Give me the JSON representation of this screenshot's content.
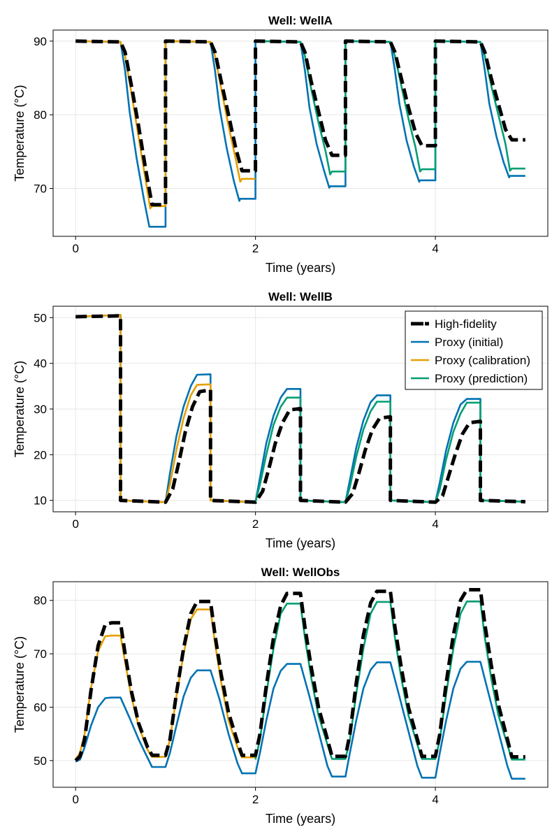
{
  "colors": {
    "high_fidelity": "#000000",
    "proxy_initial": "#0072B2",
    "proxy_calibration": "#E69F00",
    "proxy_prediction": "#009E73"
  },
  "legend": {
    "placement": "top-right of second panel",
    "entries": [
      "High-fidelity",
      "Proxy (initial)",
      "Proxy (calibration)",
      "Proxy (prediction)"
    ]
  },
  "chart_data": [
    {
      "type": "line",
      "title": "Well: WellA",
      "xlabel": "Time (years)",
      "ylabel": "Temperature (°C)",
      "xlim": [
        -0.25,
        5.25
      ],
      "ylim": [
        63.5,
        91.5
      ],
      "xticks": [
        0,
        2,
        4
      ],
      "yticks": [
        70,
        80,
        90
      ],
      "grid": true,
      "series": [
        {
          "name": "High-fidelity",
          "style": "dashed",
          "x": [
            0,
            0.5,
            0.55,
            0.62,
            0.7,
            0.78,
            0.85,
            1.0,
            1.0,
            1.5,
            1.55,
            1.62,
            1.7,
            1.78,
            1.85,
            2.0,
            2.0,
            2.5,
            2.55,
            2.62,
            2.7,
            2.78,
            2.85,
            3.0,
            3.0,
            3.5,
            3.55,
            3.62,
            3.7,
            3.78,
            3.85,
            4.0,
            4.0,
            4.5,
            4.55,
            4.62,
            4.7,
            4.78,
            4.85,
            5.0
          ],
          "y": [
            90,
            89.9,
            88.5,
            84.0,
            78.5,
            72.5,
            67.8,
            67.8,
            90,
            89.9,
            88.5,
            84.5,
            80.0,
            75.5,
            72.4,
            72.4,
            90,
            89.9,
            88.5,
            84.5,
            80.5,
            76.5,
            74.5,
            74.5,
            90,
            89.9,
            88.5,
            85.0,
            81.0,
            77.5,
            75.8,
            75.8,
            90,
            89.9,
            88.5,
            85.0,
            81.5,
            78.0,
            76.6,
            76.6
          ]
        },
        {
          "name": "Proxy (initial)",
          "style": "solid",
          "x": [
            0,
            0.5,
            0.55,
            0.6,
            0.68,
            0.76,
            0.82,
            0.83,
            1.0,
            1.0,
            1.5,
            1.55,
            1.6,
            1.68,
            1.76,
            1.82,
            1.83,
            2.0,
            2.0,
            2.5,
            2.55,
            2.6,
            2.68,
            2.76,
            2.82,
            2.83,
            3.0,
            3.0,
            3.5,
            3.55,
            3.6,
            3.68,
            3.76,
            3.82,
            3.83,
            4.0,
            4.0,
            4.5,
            4.55,
            4.6,
            4.68,
            4.76,
            4.82,
            4.83,
            5.0
          ],
          "y": [
            90,
            89.9,
            86.0,
            80.5,
            74.0,
            68.5,
            64.8,
            64.8,
            64.8,
            90,
            89.9,
            86.0,
            81.0,
            75.5,
            71.0,
            68.3,
            68.6,
            68.6,
            90,
            89.9,
            86.0,
            81.0,
            76.0,
            72.5,
            70.1,
            70.3,
            70.3,
            90,
            89.9,
            86.0,
            81.5,
            76.5,
            73.0,
            70.9,
            71.1,
            71.1,
            90,
            89.9,
            86.0,
            81.5,
            77.0,
            73.5,
            71.5,
            71.7,
            71.7
          ]
        },
        {
          "name": "Proxy (calibration)",
          "style": "solid",
          "x": [
            0,
            0.5,
            0.55,
            0.62,
            0.7,
            0.78,
            0.83,
            0.85,
            1.0,
            1.0,
            1.5,
            1.55,
            1.62,
            1.7,
            1.78,
            1.83,
            1.85,
            2.0
          ],
          "y": [
            90,
            89.9,
            88.0,
            83.0,
            77.0,
            71.0,
            67.3,
            67.6,
            67.6,
            90,
            89.9,
            88.0,
            83.5,
            78.5,
            74.0,
            70.9,
            71.3,
            71.3
          ]
        },
        {
          "name": "Proxy (prediction)",
          "style": "solid",
          "x": [
            2.0,
            2.5,
            2.55,
            2.62,
            2.7,
            2.78,
            2.83,
            2.85,
            3.0,
            3.0,
            3.5,
            3.55,
            3.62,
            3.7,
            3.78,
            3.83,
            3.85,
            4.0,
            4.0,
            4.5,
            4.55,
            4.62,
            4.7,
            4.78,
            4.83,
            4.85,
            5.0
          ],
          "y": [
            90,
            89.9,
            88.0,
            83.5,
            79.0,
            75.0,
            71.9,
            72.3,
            72.3,
            90,
            89.9,
            88.0,
            84.0,
            79.5,
            75.5,
            72.3,
            72.6,
            72.6,
            90,
            89.9,
            88.0,
            84.0,
            80.0,
            76.0,
            72.4,
            72.7,
            72.7
          ]
        }
      ]
    },
    {
      "type": "line",
      "title": "Well: WellB",
      "xlabel": "Time (years)",
      "ylabel": "Temperature (°C)",
      "xlim": [
        -0.25,
        5.25
      ],
      "ylim": [
        7.5,
        52.5
      ],
      "xticks": [
        0,
        2,
        4
      ],
      "yticks": [
        10,
        20,
        30,
        40,
        50
      ],
      "grid": true,
      "series": [
        {
          "name": "High-fidelity",
          "style": "dashed",
          "x": [
            0,
            0.5,
            0.5,
            1.0,
            1.08,
            1.15,
            1.22,
            1.3,
            1.38,
            1.5,
            1.5,
            2.0,
            2.08,
            2.15,
            2.22,
            2.3,
            2.38,
            2.5,
            2.5,
            3.0,
            3.08,
            3.15,
            3.22,
            3.3,
            3.38,
            3.5,
            3.5,
            4.0,
            4.08,
            4.15,
            4.22,
            4.3,
            4.38,
            4.5,
            4.5,
            5.0
          ],
          "y": [
            50.2,
            50.4,
            10.0,
            9.6,
            12.5,
            18.5,
            25.0,
            30.5,
            33.8,
            34.2,
            10.0,
            9.6,
            12.0,
            17.0,
            22.5,
            27.0,
            29.8,
            30.1,
            10.0,
            9.6,
            11.5,
            16.0,
            21.0,
            25.5,
            28.0,
            28.3,
            10.0,
            9.6,
            11.0,
            15.5,
            20.0,
            24.5,
            27.0,
            27.3,
            10.0,
            9.7
          ]
        },
        {
          "name": "Proxy (initial)",
          "style": "solid",
          "x": [
            0,
            0.5,
            0.5,
            1.0,
            1.05,
            1.12,
            1.2,
            1.28,
            1.35,
            1.5,
            1.5,
            2.0,
            2.05,
            2.12,
            2.2,
            2.28,
            2.35,
            2.5,
            2.5,
            3.0,
            3.05,
            3.12,
            3.2,
            3.28,
            3.35,
            3.5,
            3.5,
            4.0,
            4.05,
            4.12,
            4.2,
            4.28,
            4.35,
            4.5,
            4.5,
            5.0
          ],
          "y": [
            50.2,
            50.6,
            10.0,
            9.6,
            16.0,
            24.0,
            30.5,
            35.0,
            37.5,
            37.6,
            10.0,
            9.6,
            15.0,
            22.5,
            28.5,
            32.5,
            34.4,
            34.4,
            10.0,
            9.6,
            14.5,
            21.5,
            27.5,
            31.5,
            33.0,
            33.0,
            10.0,
            9.6,
            14.0,
            21.0,
            27.0,
            31.0,
            32.2,
            32.2,
            10.0,
            9.7
          ]
        },
        {
          "name": "Proxy (calibration)",
          "style": "solid",
          "x": [
            0,
            0.5,
            0.5,
            1.0,
            1.05,
            1.12,
            1.2,
            1.28,
            1.35,
            1.5,
            1.5,
            2.0
          ],
          "y": [
            50.2,
            50.6,
            10.0,
            9.6,
            13.5,
            21.0,
            28.0,
            33.0,
            35.3,
            35.4,
            10.0,
            9.6
          ]
        },
        {
          "name": "Proxy (prediction)",
          "style": "solid",
          "x": [
            2.0,
            2.05,
            2.12,
            2.2,
            2.28,
            2.35,
            2.5,
            2.5,
            3.0,
            3.05,
            3.12,
            3.2,
            3.28,
            3.35,
            3.5,
            3.5,
            4.0,
            4.05,
            4.12,
            4.2,
            4.28,
            4.35,
            4.5,
            4.5,
            5.0
          ],
          "y": [
            9.6,
            13.5,
            20.0,
            26.5,
            30.5,
            32.5,
            32.5,
            10.0,
            9.6,
            13.0,
            19.5,
            25.5,
            29.5,
            31.6,
            31.6,
            10.0,
            9.6,
            12.5,
            19.0,
            25.0,
            29.0,
            31.4,
            31.4,
            10.0,
            9.7
          ]
        }
      ]
    },
    {
      "type": "line",
      "title": "Well: WellObs",
      "xlabel": "Time (years)",
      "ylabel": "Temperature (°C)",
      "xlim": [
        -0.25,
        5.25
      ],
      "ylim": [
        45.0,
        83.5
      ],
      "xticks": [
        0,
        2,
        4
      ],
      "yticks": [
        50,
        60,
        70,
        80
      ],
      "grid": true,
      "series": [
        {
          "name": "High-fidelity",
          "style": "dashed",
          "x": [
            0,
            0.05,
            0.1,
            0.17,
            0.25,
            0.33,
            0.4,
            0.5,
            0.55,
            0.62,
            0.7,
            0.8,
            0.85,
            1.0,
            1.05,
            1.12,
            1.2,
            1.28,
            1.35,
            1.5,
            1.55,
            1.62,
            1.7,
            1.8,
            1.85,
            2.0,
            2.05,
            2.12,
            2.2,
            2.28,
            2.35,
            2.5,
            2.55,
            2.62,
            2.7,
            2.8,
            2.85,
            3.0,
            3.05,
            3.12,
            3.2,
            3.28,
            3.35,
            3.5,
            3.55,
            3.62,
            3.7,
            3.8,
            3.85,
            4.0,
            4.05,
            4.12,
            4.2,
            4.28,
            4.35,
            4.5,
            4.55,
            4.62,
            4.7,
            4.8,
            4.85,
            5.0
          ],
          "y": [
            50.0,
            50.8,
            54.0,
            63.0,
            71.5,
            75.5,
            75.8,
            75.8,
            70.0,
            63.0,
            57.0,
            52.5,
            51.0,
            51.0,
            54.0,
            62.5,
            71.0,
            77.5,
            79.8,
            79.8,
            73.5,
            66.0,
            59.0,
            53.5,
            51.0,
            51.0,
            55.0,
            64.0,
            73.0,
            79.0,
            81.3,
            81.3,
            75.0,
            67.5,
            60.0,
            54.0,
            50.8,
            50.8,
            55.0,
            64.5,
            73.5,
            79.5,
            81.7,
            81.7,
            75.0,
            67.5,
            60.0,
            54.0,
            50.8,
            50.8,
            55.0,
            64.5,
            73.5,
            80.0,
            82.0,
            82.0,
            75.5,
            68.0,
            60.5,
            54.0,
            50.7,
            50.7
          ]
        },
        {
          "name": "Proxy (initial)",
          "style": "solid",
          "x": [
            0,
            0.05,
            0.1,
            0.17,
            0.25,
            0.33,
            0.4,
            0.5,
            0.6,
            0.7,
            0.8,
            0.85,
            1.0,
            1.05,
            1.12,
            1.2,
            1.28,
            1.35,
            1.5,
            1.6,
            1.7,
            1.8,
            1.85,
            2.0,
            2.05,
            2.12,
            2.2,
            2.28,
            2.35,
            2.5,
            2.6,
            2.7,
            2.8,
            2.85,
            3.0,
            3.05,
            3.12,
            3.2,
            3.28,
            3.35,
            3.5,
            3.6,
            3.7,
            3.8,
            3.85,
            4.0,
            4.05,
            4.12,
            4.2,
            4.28,
            4.35,
            4.5,
            4.6,
            4.7,
            4.8,
            4.85,
            5.0
          ],
          "y": [
            49.8,
            50.2,
            52.5,
            56.5,
            60.0,
            61.7,
            61.8,
            61.8,
            58.0,
            54.0,
            50.5,
            48.8,
            48.8,
            51.5,
            56.5,
            62.0,
            65.5,
            66.9,
            66.9,
            61.5,
            55.0,
            49.5,
            47.6,
            47.6,
            51.5,
            57.5,
            63.5,
            66.8,
            68.1,
            68.1,
            62.0,
            55.5,
            49.0,
            47.0,
            47.0,
            51.5,
            57.5,
            63.5,
            67.0,
            68.4,
            68.4,
            62.0,
            55.5,
            49.0,
            46.8,
            46.8,
            51.5,
            57.5,
            63.5,
            67.2,
            68.5,
            68.5,
            62.0,
            55.5,
            49.0,
            46.6,
            46.6
          ]
        },
        {
          "name": "Proxy (calibration)",
          "style": "solid",
          "x": [
            0,
            0.05,
            0.1,
            0.17,
            0.25,
            0.33,
            0.4,
            0.5,
            0.55,
            0.62,
            0.7,
            0.8,
            0.85,
            1.0,
            1.05,
            1.12,
            1.2,
            1.28,
            1.35,
            1.5,
            1.55,
            1.62,
            1.7,
            1.8,
            1.85,
            2.0
          ],
          "y": [
            50.2,
            51.5,
            55.0,
            63.5,
            70.5,
            73.3,
            73.4,
            73.4,
            68.5,
            62.0,
            56.5,
            52.0,
            50.7,
            50.7,
            54.0,
            62.0,
            70.0,
            76.5,
            78.3,
            78.3,
            72.0,
            64.5,
            57.5,
            52.5,
            50.6,
            50.6
          ]
        },
        {
          "name": "Proxy (prediction)",
          "style": "solid",
          "x": [
            2.0,
            2.05,
            2.12,
            2.2,
            2.28,
            2.35,
            2.5,
            2.55,
            2.62,
            2.7,
            2.8,
            2.85,
            3.0,
            3.05,
            3.12,
            3.2,
            3.28,
            3.35,
            3.5,
            3.55,
            3.62,
            3.7,
            3.8,
            3.85,
            4.0,
            4.05,
            4.12,
            4.2,
            4.28,
            4.35,
            4.5,
            4.55,
            4.62,
            4.7,
            4.8,
            4.85,
            5.0
          ],
          "y": [
            50.2,
            54.0,
            62.5,
            71.0,
            77.5,
            79.4,
            79.4,
            73.0,
            65.5,
            58.5,
            53.0,
            50.3,
            50.3,
            54.0,
            62.5,
            71.0,
            77.5,
            79.7,
            79.7,
            73.0,
            65.5,
            58.5,
            53.0,
            50.3,
            50.3,
            54.0,
            62.5,
            71.0,
            77.5,
            79.8,
            79.8,
            73.0,
            65.5,
            58.5,
            53.0,
            50.2,
            50.2
          ]
        }
      ]
    }
  ]
}
